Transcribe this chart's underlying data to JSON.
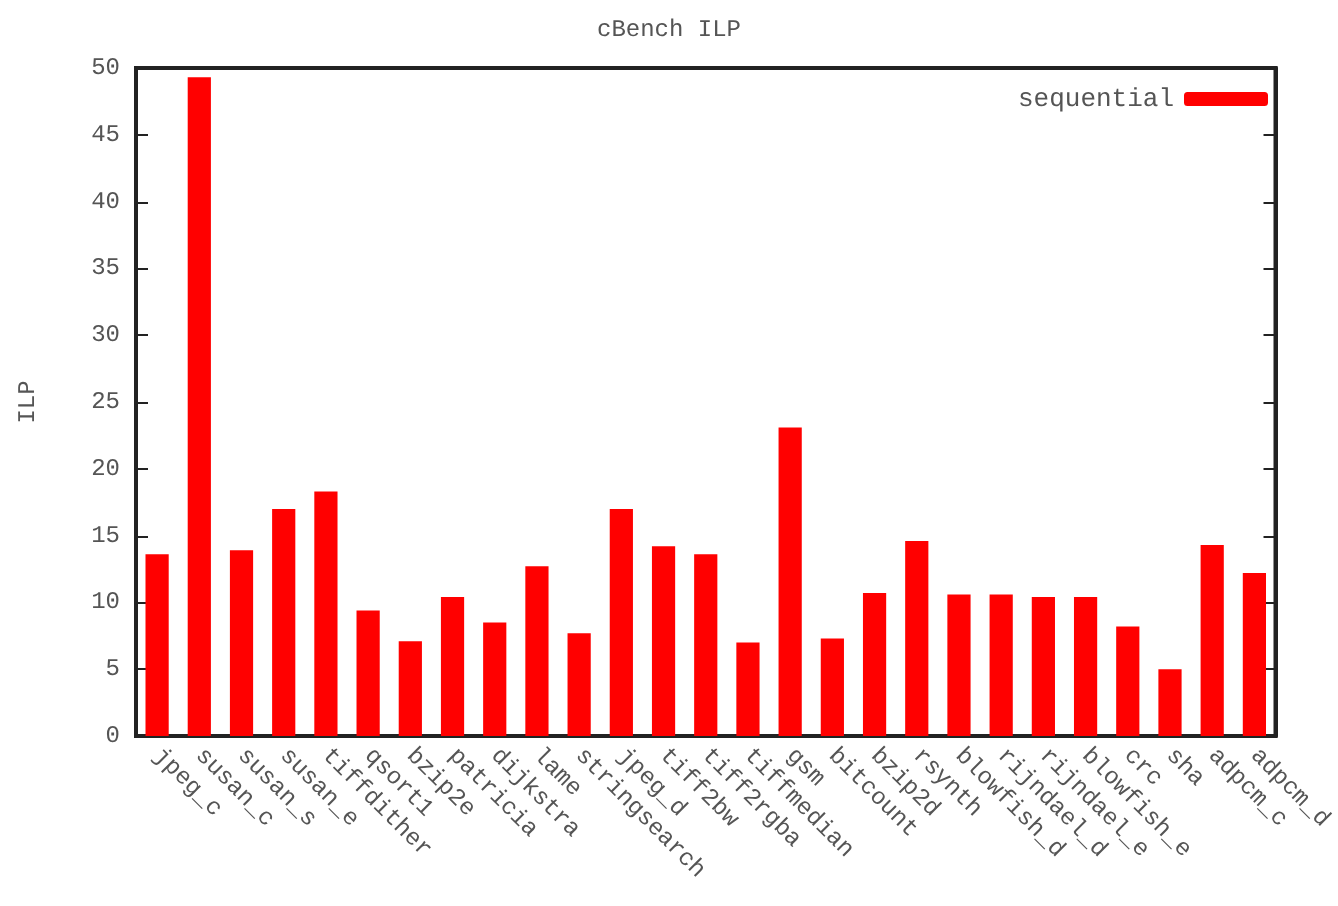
{
  "chart_data": {
    "type": "bar",
    "title": "cBench ILP",
    "ylabel": "ILP",
    "categories": [
      "jpeg_c",
      "susan_c",
      "susan_s",
      "susan_e",
      "tiffdither",
      "qsort1",
      "bzip2e",
      "patricia",
      "dijkstra",
      "lame",
      "stringsearch",
      "jpeg_d",
      "tiff2bw",
      "tiff2rgba",
      "tiffmedian",
      "gsm",
      "bitcount",
      "bzip2d",
      "rsynth",
      "blowfish_d",
      "rijndael_d",
      "rijndael_e",
      "blowfish_e",
      "crc",
      "sha",
      "adpcm_c",
      "adpcm_d"
    ],
    "series": [
      {
        "name": "sequential",
        "color": "#ff0000",
        "values": [
          13.6,
          49.3,
          13.9,
          17.0,
          18.3,
          9.4,
          7.1,
          10.4,
          8.5,
          12.7,
          7.7,
          17.0,
          14.2,
          13.6,
          7.0,
          23.1,
          7.3,
          10.7,
          14.6,
          10.6,
          10.6,
          10.4,
          10.4,
          8.2,
          5.0,
          14.3,
          12.2
        ]
      }
    ],
    "ylim": [
      0,
      50
    ],
    "yticks": [
      0,
      5,
      10,
      15,
      20,
      25,
      30,
      35,
      40,
      45,
      50
    ],
    "grid": false,
    "legend": "top right"
  }
}
